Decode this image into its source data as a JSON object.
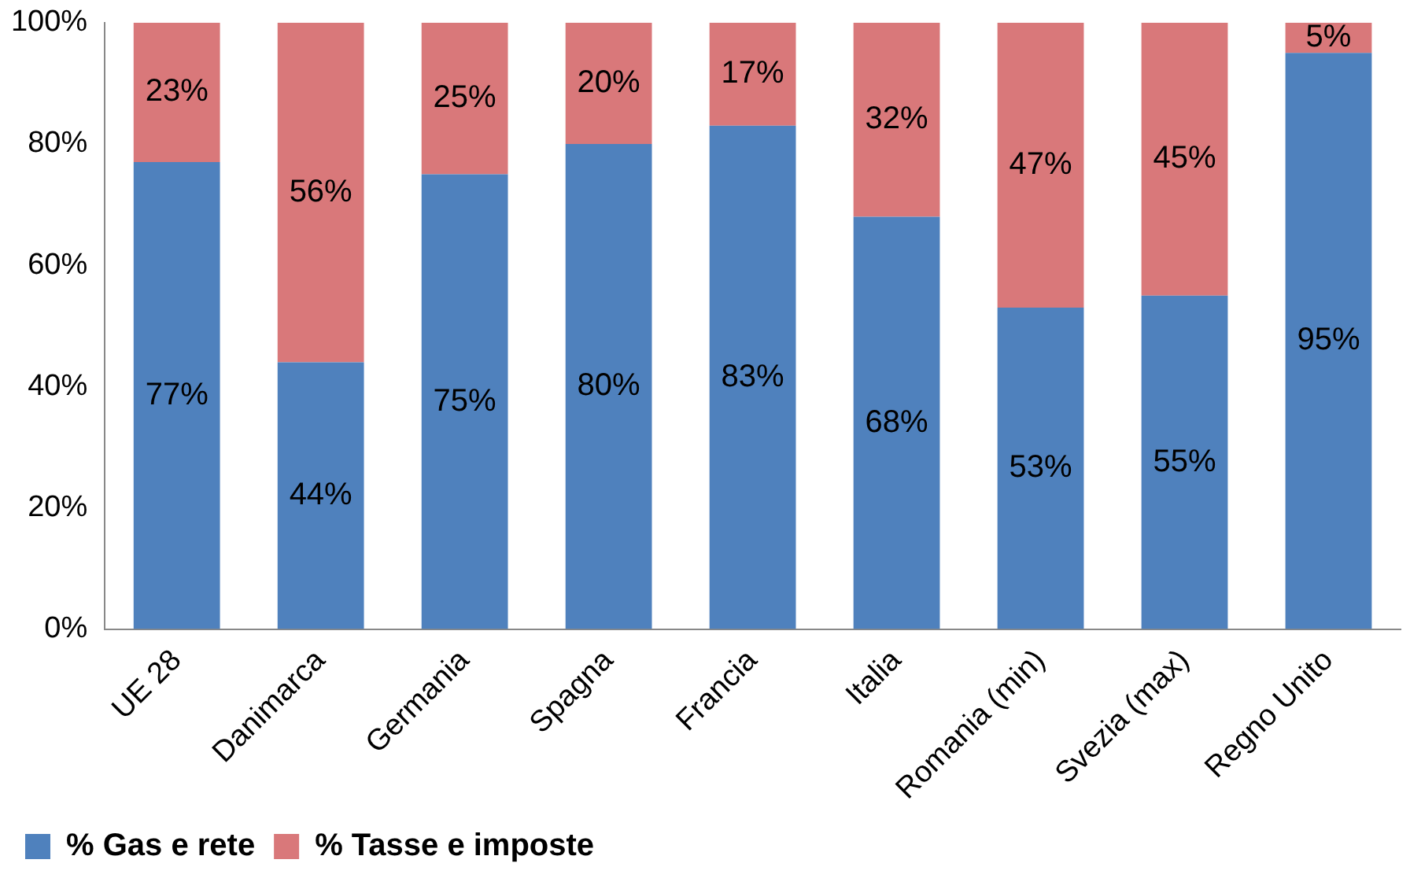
{
  "chart_data": {
    "type": "bar",
    "stacked": true,
    "categories": [
      "UE 28",
      "Danimarca",
      "Germania",
      "Spagna",
      "Francia",
      "Italia",
      "Romania (min)",
      "Svezia (max)",
      "Regno Unito"
    ],
    "series": [
      {
        "name": "% Gas e rete",
        "color": "#4f81bd",
        "values": [
          77,
          44,
          75,
          80,
          83,
          68,
          53,
          55,
          95
        ],
        "value_labels": [
          "77%",
          "44%",
          "75%",
          "80%",
          "83%",
          "68%",
          "53%",
          "55%",
          "95%"
        ]
      },
      {
        "name": "% Tasse e imposte",
        "color": "#d9787a",
        "values": [
          23,
          56,
          25,
          20,
          17,
          32,
          47,
          45,
          5
        ],
        "value_labels": [
          "23%",
          "56%",
          "25%",
          "20%",
          "17%",
          "32%",
          "47%",
          "45%",
          "5%"
        ]
      }
    ],
    "ylim": [
      0,
      100
    ],
    "yticks": [
      {
        "value": 0,
        "label": "0%"
      },
      {
        "value": 20,
        "label": "20%"
      },
      {
        "value": 40,
        "label": "40%"
      },
      {
        "value": 60,
        "label": "60%"
      },
      {
        "value": 80,
        "label": "80%"
      },
      {
        "value": 100,
        "label": "100%"
      }
    ],
    "grid": false,
    "legend": "bottom left"
  }
}
